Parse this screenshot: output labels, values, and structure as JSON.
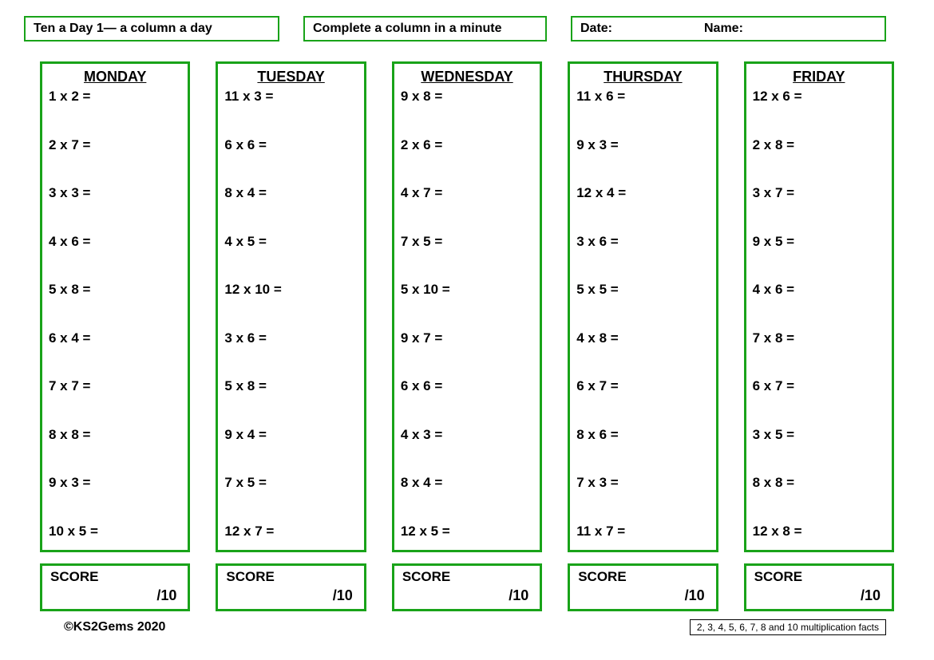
{
  "colors": {
    "border": "#19a319",
    "text": "#000000",
    "background": "#ffffff"
  },
  "header": {
    "title": "Ten a Day 1— a column a day",
    "instruction": "Complete a column in a minute",
    "date_label": "Date:",
    "name_label": "Name:"
  },
  "score": {
    "label": "SCORE",
    "denominator": "/10"
  },
  "days": [
    {
      "name": "MONDAY",
      "problems": [
        "1 x 2 =",
        "2 x 7 =",
        "3 x 3 =",
        "4 x 6 =",
        "5 x 8 =",
        "6 x 4 =",
        "7 x 7 =",
        "8 x 8 =",
        "9 x 3 =",
        "10 x 5 ="
      ]
    },
    {
      "name": "TUESDAY",
      "problems": [
        "11 x 3 =",
        "6 x 6 =",
        "8 x 4 =",
        "4 x 5 =",
        "12 x 10 =",
        "3 x 6 =",
        "5 x 8 =",
        "9 x 4 =",
        "7 x 5 =",
        "12 x 7 ="
      ]
    },
    {
      "name": "WEDNESDAY",
      "problems": [
        "9 x 8 =",
        "2 x 6 =",
        "4 x 7 =",
        "7 x 5 =",
        "5 x 10 =",
        "9 x 7 =",
        "6 x 6 =",
        "4 x 3 =",
        "8 x 4 =",
        "12 x 5 ="
      ]
    },
    {
      "name": "THURSDAY",
      "problems": [
        "11 x 6 =",
        "9 x 3 =",
        "12 x 4 =",
        "3 x 6 =",
        "5 x 5 =",
        "4 x 8 =",
        "6 x 7 =",
        "8 x 6 =",
        "7 x 3 =",
        "11 x 7 ="
      ]
    },
    {
      "name": "FRIDAY",
      "problems": [
        "12 x 6 =",
        "2 x 8 =",
        "3 x 7 =",
        "9 x 5 =",
        "4 x 6 =",
        "7 x 8 =",
        "6 x 7 =",
        "3 x 5 =",
        "8 x 8 =",
        "12 x 8 ="
      ]
    }
  ],
  "footer": {
    "copyright": "©KS2Gems 2020",
    "facts": "2, 3, 4, 5, 6, 7, 8 and 10 multiplication facts"
  }
}
